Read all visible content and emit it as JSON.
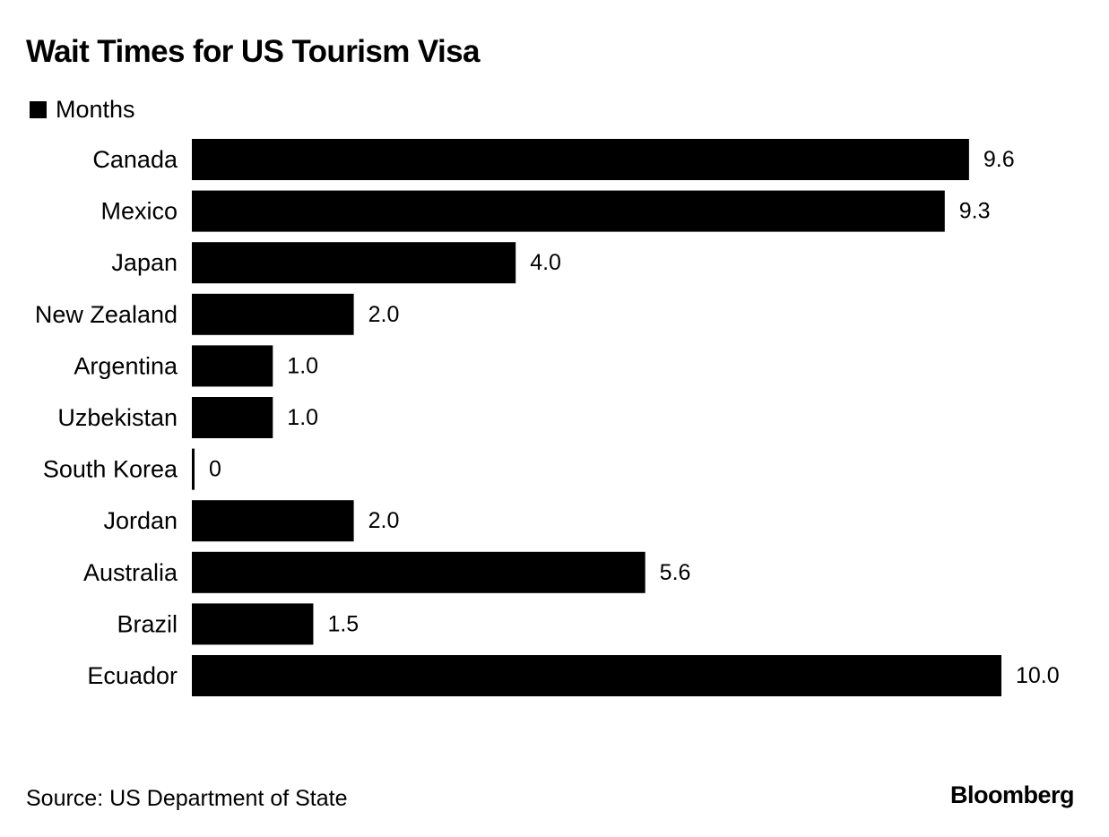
{
  "chart_data": {
    "type": "bar",
    "orientation": "horizontal",
    "title": "Wait Times for US Tourism Visa",
    "legend_position": "top-left",
    "categories": [
      "Canada",
      "Mexico",
      "Japan",
      "New Zealand",
      "Argentina",
      "Uzbekistan",
      "South Korea",
      "Jordan",
      "Australia",
      "Brazil",
      "Ecuador"
    ],
    "series": [
      {
        "name": "Months",
        "color": "#000000",
        "values": [
          9.6,
          9.3,
          4.0,
          2.0,
          1.0,
          1.0,
          0,
          2.0,
          5.6,
          1.5,
          10.0
        ],
        "labels": [
          "9.6",
          "9.3",
          "4.0",
          "2.0",
          "1.0",
          "1.0",
          "0",
          "2.0",
          "5.6",
          "1.5",
          "10.0"
        ]
      }
    ],
    "xlim": [
      0,
      10
    ],
    "grid": false,
    "source": "Source: US Department of State"
  },
  "branding": {
    "logo_text": "Bloomberg"
  }
}
